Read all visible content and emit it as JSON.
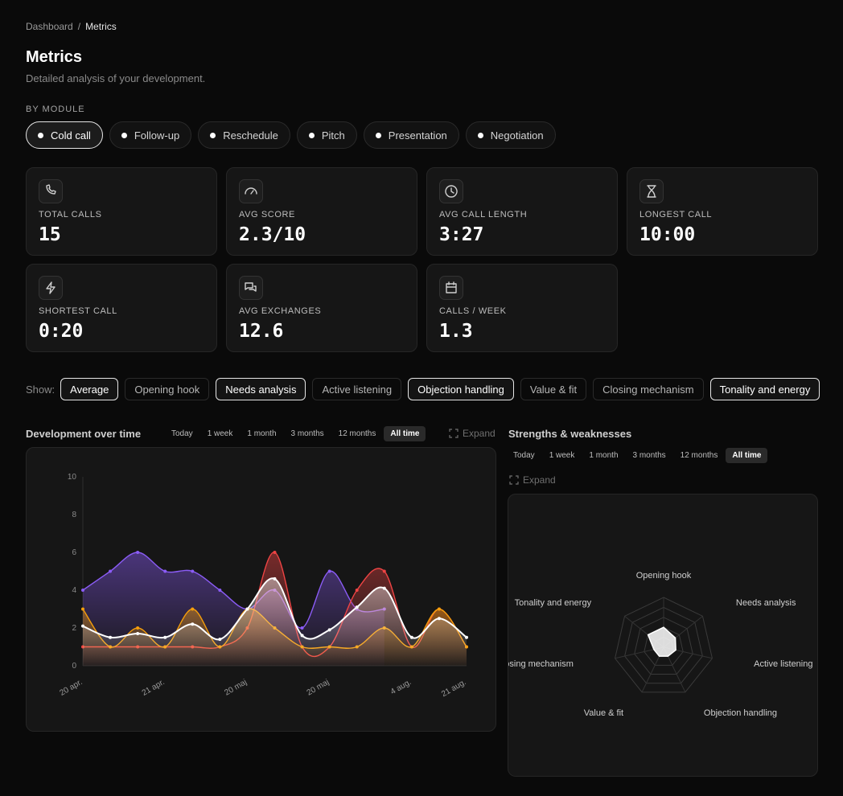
{
  "breadcrumb": {
    "items": [
      "Dashboard",
      "Metrics"
    ],
    "separator": "/"
  },
  "header": {
    "title": "Metrics",
    "subtitle": "Detailed analysis of your development."
  },
  "modules": {
    "label": "BY MODULE",
    "items": [
      "Cold call",
      "Follow-up",
      "Reschedule",
      "Pitch",
      "Presentation",
      "Negotiation"
    ],
    "active": 0
  },
  "stats": [
    {
      "label": "TOTAL CALLS",
      "value": 15
    },
    {
      "label": "AVG SCORE",
      "value": "2.3/10"
    },
    {
      "label": "AVG CALL LENGTH",
      "value": "3:27"
    },
    {
      "label": "LONGEST CALL",
      "value": "10:00"
    },
    {
      "label": "SHORTEST CALL",
      "value": "0:20"
    },
    {
      "label": "AVG EXCHANGES",
      "value": 12.6
    },
    {
      "label": "CALLS / WEEK",
      "value": 1.3
    }
  ],
  "filters": {
    "label": "Show:",
    "items": [
      {
        "label": "Average",
        "selected": true
      },
      {
        "label": "Opening hook",
        "selected": false
      },
      {
        "label": "Needs analysis",
        "selected": true
      },
      {
        "label": "Active listening",
        "selected": false
      },
      {
        "label": "Objection handling",
        "selected": true
      },
      {
        "label": "Value & fit",
        "selected": false
      },
      {
        "label": "Closing mechanism",
        "selected": false
      },
      {
        "label": "Tonality and energy",
        "selected": true
      }
    ]
  },
  "development": {
    "title": "Development over time",
    "ranges": [
      "Today",
      "1 week",
      "1 month",
      "3 months",
      "12 months",
      "All time"
    ],
    "active_range": 5,
    "expand": "Expand"
  },
  "strengths": {
    "title": "Strengths & weaknesses",
    "ranges": [
      "Today",
      "1 week",
      "1 month",
      "3 months",
      "12 months",
      "All time"
    ],
    "active_range": 5,
    "expand": "Expand"
  },
  "chart_data": [
    {
      "type": "line",
      "categories": [
        "20 apr.",
        null,
        null,
        "21 apr.",
        null,
        null,
        "20 maj",
        null,
        null,
        "20 maj",
        null,
        null,
        "4 aug.",
        null,
        "21 aug."
      ],
      "ylim": [
        0,
        10
      ],
      "yticks": [
        0,
        2,
        4,
        6,
        8,
        10
      ],
      "series": [
        {
          "color": "#8b5cf6",
          "values": [
            4,
            5,
            6,
            5,
            5,
            4,
            3,
            4,
            2,
            5,
            3,
            3,
            null,
            null,
            null
          ]
        },
        {
          "color": "#ef4444",
          "values": [
            1,
            1,
            1,
            1,
            1,
            1,
            2,
            6,
            1,
            1,
            4,
            5,
            1,
            3,
            1
          ]
        },
        {
          "color": "#f59e0b",
          "values": [
            3,
            1,
            2,
            1,
            3,
            1,
            3,
            2,
            1,
            1,
            1,
            2,
            1,
            3,
            1
          ]
        },
        {
          "color": "#ffffff",
          "values": [
            2.1,
            1.5,
            1.7,
            1.5,
            2.2,
            1.4,
            3,
            4.6,
            1.6,
            1.9,
            3.1,
            4.1,
            1.5,
            2.5,
            1.5
          ]
        }
      ]
    },
    {
      "type": "radar",
      "categories": [
        "Opening hook",
        "Needs analysis",
        "Active listening",
        "Objection handling",
        "Value & fit",
        "Closing mechanism",
        "Tonality and energy"
      ],
      "values": [
        4,
        3,
        2.5,
        2,
        2,
        2,
        4
      ],
      "color": "#ffffff",
      "rlim": [
        0,
        10
      ],
      "rticks": [
        2,
        4,
        6,
        8,
        10
      ]
    }
  ]
}
